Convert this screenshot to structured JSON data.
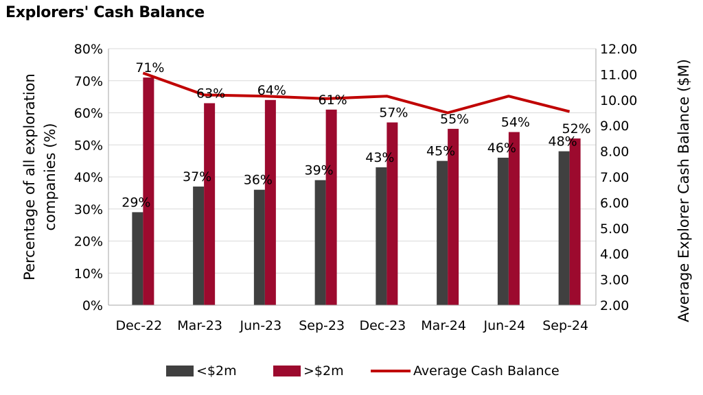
{
  "title": "Explorers' Cash Balance",
  "colors": {
    "low": "#404040",
    "high": "#9c0a2e",
    "line": "#c00000",
    "grid": "#d9d9d9"
  },
  "legend": {
    "low": "<$2m",
    "high": ">$2m",
    "line": "Average Cash Balance"
  },
  "chart_data": {
    "type": "bar",
    "title": "Explorers' Cash Balance",
    "categories": [
      "Dec-22",
      "Mar-23",
      "Jun-23",
      "Sep-23",
      "Dec-23",
      "Mar-24",
      "Jun-24",
      "Sep-24"
    ],
    "series": [
      {
        "name": "<$2m",
        "type": "bar",
        "axis": "left",
        "values": [
          29,
          37,
          36,
          39,
          43,
          45,
          46,
          48
        ],
        "labels": [
          "29%",
          "37%",
          "36%",
          "39%",
          "43%",
          "45%",
          "46%",
          "48%"
        ]
      },
      {
        "name": ">$2m",
        "type": "bar",
        "axis": "left",
        "values": [
          71,
          63,
          64,
          61,
          57,
          55,
          54,
          52
        ],
        "labels": [
          "71%",
          "63%",
          "64%",
          "61%",
          "57%",
          "55%",
          "54%",
          "52%"
        ]
      },
      {
        "name": "Average Cash Balance",
        "type": "line",
        "axis": "right",
        "values": [
          11.05,
          10.2,
          10.15,
          10.05,
          10.15,
          9.5,
          10.15,
          9.55
        ]
      }
    ],
    "ylabel": "Percentage of all exploration companies (%)",
    "ylabel_lines": [
      "Percentage of all exploration",
      "companies (%)"
    ],
    "y2label": "Average Explorer Cash Balance ($M)",
    "ylim": [
      0,
      80
    ],
    "y2lim": [
      2,
      12
    ],
    "yticks": [
      "0%",
      "10%",
      "20%",
      "30%",
      "40%",
      "50%",
      "60%",
      "70%",
      "80%"
    ],
    "y2ticks": [
      "2.00",
      "3.00",
      "4.00",
      "5.00",
      "6.00",
      "7.00",
      "8.00",
      "9.00",
      "10.00",
      "11.00",
      "12.00"
    ],
    "grid": true,
    "legend_position": "bottom"
  }
}
